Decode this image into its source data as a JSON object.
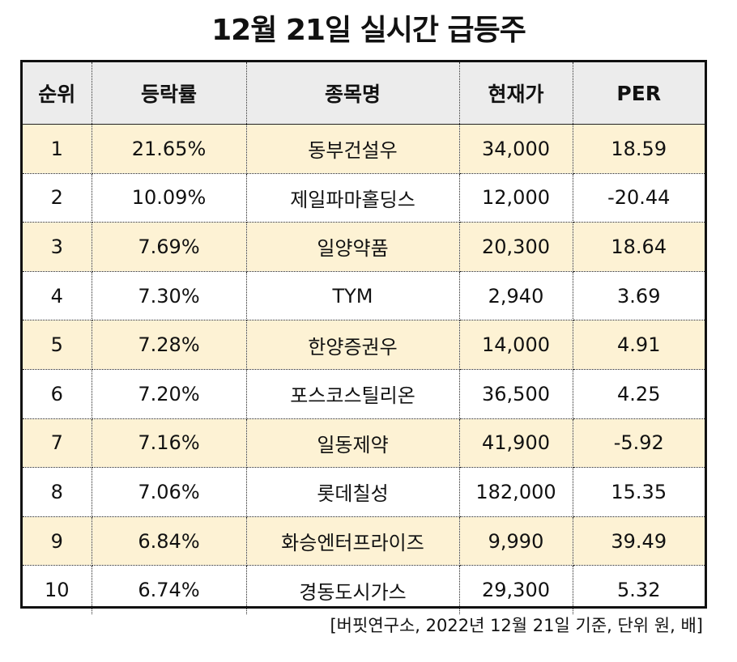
{
  "title": "12월 21일 실시간 급등주",
  "table": {
    "headers": [
      "순위",
      "등락률",
      "종목명",
      "현재가",
      "PER"
    ],
    "rows": [
      [
        "1",
        "21.65%",
        "동부건설우",
        "34,000",
        "18.59"
      ],
      [
        "2",
        "10.09%",
        "제일파마홀딩스",
        "12,000",
        "-20.44"
      ],
      [
        "3",
        "7.69%",
        "일양약품",
        "20,300",
        "18.64"
      ],
      [
        "4",
        "7.30%",
        "TYM",
        "2,940",
        "3.69"
      ],
      [
        "5",
        "7.28%",
        "한양증권우",
        "14,000",
        "4.91"
      ],
      [
        "6",
        "7.20%",
        "포스코스틸리온",
        "36,500",
        "4.25"
      ],
      [
        "7",
        "7.16%",
        "일동제약",
        "41,900",
        "-5.92"
      ],
      [
        "8",
        "7.06%",
        "롯데칠성",
        "182,000",
        "15.35"
      ],
      [
        "9",
        "6.84%",
        "화승엔터프라이즈",
        "9,990",
        "39.49"
      ],
      [
        "10",
        "6.74%",
        "경동도시가스",
        "29,300",
        "5.32"
      ]
    ]
  },
  "footnote": "[버핏연구소, 2022년 12월 21일 기준, 단위 원, 배]",
  "colors": {
    "header_bg": "#ececec",
    "shaded_row_bg": "#fdf2d4",
    "plain_row_bg": "#ffffff",
    "border": "#111111"
  }
}
